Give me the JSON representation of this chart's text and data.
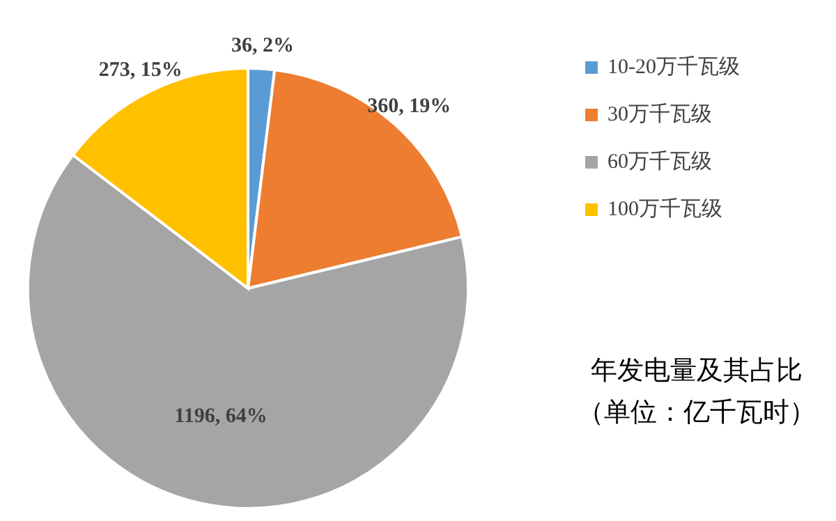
{
  "chart_data": {
    "type": "pie",
    "categories": [
      "10-20万千瓦级",
      "30万千瓦级",
      "60万千瓦级",
      "100万千瓦级"
    ],
    "values": [
      36,
      360,
      1196,
      273
    ],
    "colors": [
      "#5b9bd5",
      "#ed7d31",
      "#a5a5a5",
      "#ffc000"
    ],
    "value_labels": [
      "36, 2%",
      "360, 19%",
      "1196, 64%",
      "273, 15%"
    ],
    "legend": "top right",
    "annotations": [
      "年发电量及其占比",
      "（单位：亿千瓦时）"
    ]
  }
}
